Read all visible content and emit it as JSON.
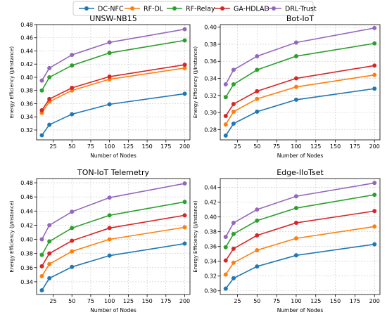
{
  "legend": {
    "placement": "top-center",
    "items": [
      {
        "name": "DC-NFC",
        "color": "#1f77b4"
      },
      {
        "name": "RF-DL",
        "color": "#ff7f0e"
      },
      {
        "name": "RF-Relay",
        "color": "#2ca02c"
      },
      {
        "name": "GA-HDLAD",
        "color": "#d62728"
      },
      {
        "name": "DRL-Trust",
        "color": "#9467bd"
      }
    ]
  },
  "chart_data": [
    {
      "type": "line",
      "title": "UNSW-NB15",
      "xlabel": "Number of Nodes",
      "ylabel": "Energy Efficiency (J/Instance)",
      "x": [
        10,
        20,
        50,
        100,
        200
      ],
      "xlim": [
        3,
        207
      ],
      "xticks": [
        25,
        50,
        75,
        100,
        125,
        150,
        175,
        200
      ],
      "ylim": [
        0.305,
        0.48
      ],
      "yticks": [
        0.32,
        0.34,
        0.36,
        0.38,
        0.4,
        0.42,
        0.44,
        0.46,
        0.48
      ],
      "ytick_labels": [
        "0.32",
        "0.34",
        "0.36",
        "0.38",
        "0.40",
        "0.42",
        "0.44",
        "0.46",
        "0.48"
      ],
      "grid": true,
      "series": [
        {
          "name": "DC-NFC",
          "values": [
            0.312,
            0.328,
            0.344,
            0.359,
            0.375
          ]
        },
        {
          "name": "RF-DL",
          "values": [
            0.346,
            0.363,
            0.38,
            0.397,
            0.414
          ]
        },
        {
          "name": "RF-Relay",
          "values": [
            0.38,
            0.4,
            0.418,
            0.437,
            0.456
          ]
        },
        {
          "name": "GA-HDLAD",
          "values": [
            0.35,
            0.367,
            0.384,
            0.401,
            0.419
          ]
        },
        {
          "name": "DRL-Trust",
          "values": [
            0.395,
            0.414,
            0.434,
            0.453,
            0.473
          ]
        }
      ]
    },
    {
      "type": "line",
      "title": "Bot-IoT",
      "xlabel": "Number of Nodes",
      "ylabel": "Energy Efficiency (J/Instance)",
      "x": [
        10,
        20,
        50,
        100,
        200
      ],
      "xlim": [
        3,
        207
      ],
      "xticks": [
        25,
        50,
        75,
        100,
        125,
        150,
        175,
        200
      ],
      "ylim": [
        0.268,
        0.403
      ],
      "yticks": [
        0.28,
        0.3,
        0.32,
        0.34,
        0.36,
        0.38,
        0.4
      ],
      "ytick_labels": [
        "0.28",
        "0.30",
        "0.32",
        "0.34",
        "0.36",
        "0.38",
        "0.40"
      ],
      "grid": true,
      "series": [
        {
          "name": "DC-NFC",
          "values": [
            0.273,
            0.287,
            0.301,
            0.315,
            0.328
          ]
        },
        {
          "name": "RF-DL",
          "values": [
            0.286,
            0.301,
            0.316,
            0.33,
            0.344
          ]
        },
        {
          "name": "RF-Relay",
          "values": [
            0.318,
            0.333,
            0.35,
            0.366,
            0.381
          ]
        },
        {
          "name": "GA-HDLAD",
          "values": [
            0.296,
            0.31,
            0.325,
            0.34,
            0.355
          ]
        },
        {
          "name": "DRL-Trust",
          "values": [
            0.333,
            0.35,
            0.366,
            0.382,
            0.399
          ]
        }
      ]
    },
    {
      "type": "line",
      "title": "TON-IoT Telemetry",
      "xlabel": "Number of Nodes",
      "ylabel": "Energy Efficiency (J/Instance)",
      "x": [
        10,
        20,
        50,
        100,
        200
      ],
      "xlim": [
        3,
        207
      ],
      "xticks": [
        25,
        50,
        75,
        100,
        125,
        150,
        175,
        200
      ],
      "ylim": [
        0.322,
        0.486
      ],
      "yticks": [
        0.34,
        0.36,
        0.38,
        0.4,
        0.42,
        0.44,
        0.46,
        0.48
      ],
      "ytick_labels": [
        "0.34",
        "0.36",
        "0.38",
        "0.40",
        "0.42",
        "0.44",
        "0.46",
        "0.48"
      ],
      "grid": true,
      "series": [
        {
          "name": "DC-NFC",
          "values": [
            0.328,
            0.345,
            0.361,
            0.377,
            0.394
          ]
        },
        {
          "name": "RF-DL",
          "values": [
            0.348,
            0.365,
            0.383,
            0.4,
            0.417
          ]
        },
        {
          "name": "RF-Relay",
          "values": [
            0.378,
            0.397,
            0.416,
            0.434,
            0.453
          ]
        },
        {
          "name": "GA-HDLAD",
          "values": [
            0.362,
            0.38,
            0.398,
            0.416,
            0.434
          ]
        },
        {
          "name": "DRL-Trust",
          "values": [
            0.4,
            0.42,
            0.439,
            0.459,
            0.479
          ]
        }
      ]
    },
    {
      "type": "line",
      "title": "Edge-IIoTset",
      "xlabel": "Number of Nodes",
      "ylabel": "Energy Efficiency (J/Instance)",
      "x": [
        10,
        20,
        50,
        100,
        200
      ],
      "xlim": [
        3,
        207
      ],
      "xticks": [
        25,
        50,
        75,
        100,
        125,
        150,
        175,
        200
      ],
      "ylim": [
        0.295,
        0.452
      ],
      "yticks": [
        0.3,
        0.32,
        0.34,
        0.36,
        0.38,
        0.4,
        0.42,
        0.44
      ],
      "ytick_labels": [
        "0.30",
        "0.32",
        "0.34",
        "0.36",
        "0.38",
        "0.40",
        "0.42",
        "0.44"
      ],
      "grid": true,
      "series": [
        {
          "name": "DC-NFC",
          "values": [
            0.303,
            0.317,
            0.333,
            0.348,
            0.363
          ]
        },
        {
          "name": "RF-DL",
          "values": [
            0.322,
            0.338,
            0.355,
            0.371,
            0.387
          ]
        },
        {
          "name": "RF-Relay",
          "values": [
            0.359,
            0.377,
            0.395,
            0.412,
            0.43
          ]
        },
        {
          "name": "GA-HDLAD",
          "values": [
            0.341,
            0.357,
            0.375,
            0.392,
            0.408
          ]
        },
        {
          "name": "DRL-Trust",
          "values": [
            0.373,
            0.392,
            0.41,
            0.428,
            0.446
          ]
        }
      ]
    }
  ]
}
